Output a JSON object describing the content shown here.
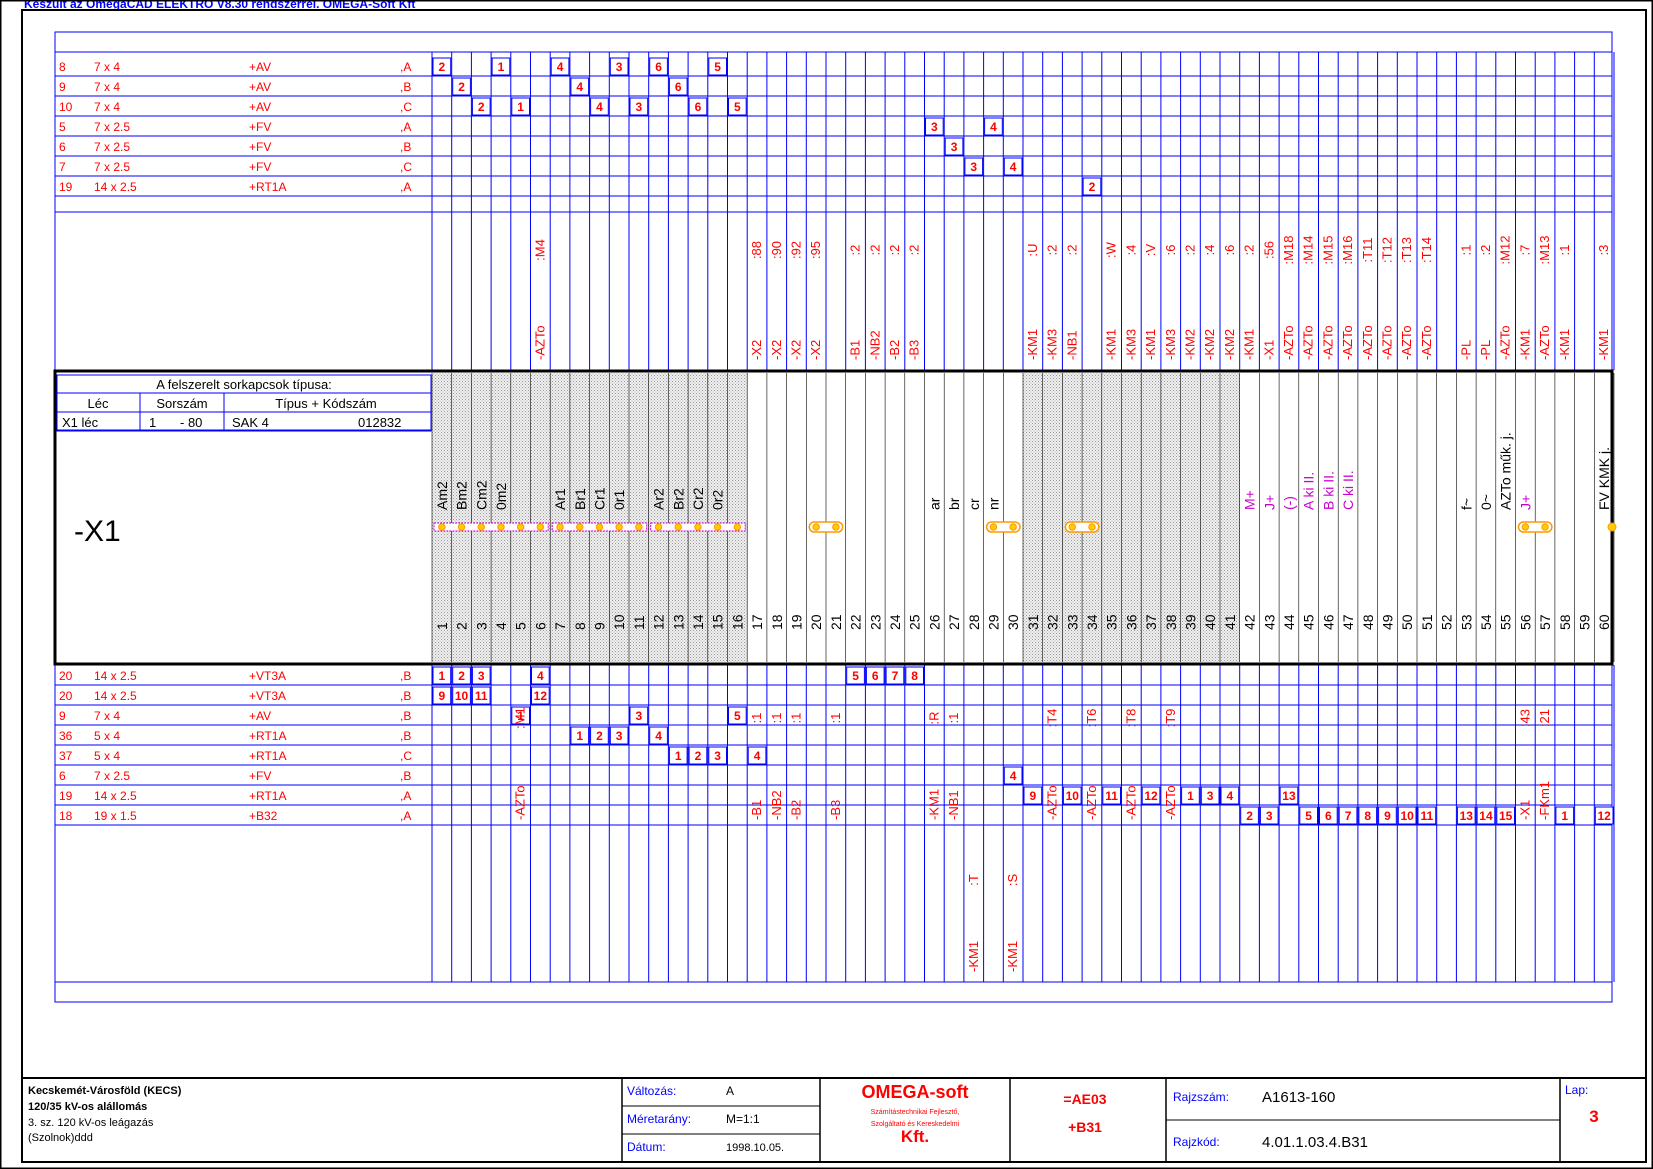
{
  "header_text": "Készült az OmegaCAD ELEKTRO V8.30 rendszerrel. OMEGA-Soft Kft",
  "colors": {
    "blue": "#0000ff",
    "red": "#ff0000",
    "magenta": "#cc00cc",
    "black": "#000000",
    "orange": "#ff9900",
    "yellow": "#ffcc00",
    "navy": "#000080"
  },
  "strip_name": "-X1",
  "terminal_info": {
    "title": "A felszerelt sorkapcsok típusa:",
    "headers": [
      "Léc",
      "Sorszám",
      "Típus + Kódszám"
    ],
    "row": {
      "lec": "X1 léc",
      "from": "1",
      "to": "- 80",
      "type": "SAK 4",
      "code": "012832"
    }
  },
  "terminal_numbers": [
    "1",
    "2",
    "3",
    "4",
    "5",
    "6",
    "7",
    "8",
    "9",
    "10",
    "11",
    "12",
    "13",
    "14",
    "15",
    "16",
    "17",
    "18",
    "19",
    "20",
    "21",
    "22",
    "23",
    "24",
    "25",
    "26",
    "27",
    "28",
    "29",
    "30",
    "31",
    "32",
    "33",
    "34",
    "35",
    "36",
    "37",
    "38",
    "39",
    "40",
    "41",
    "42",
    "43",
    "44",
    "45",
    "46",
    "47",
    "48",
    "49",
    "50",
    "51",
    "52",
    "53",
    "54",
    "55",
    "56",
    "57",
    "58",
    "59",
    "60"
  ],
  "terminal_labels": [
    {
      "t": 1,
      "text": "Am2",
      "color": "black"
    },
    {
      "t": 2,
      "text": "Bm2",
      "color": "black"
    },
    {
      "t": 3,
      "text": "Cm2",
      "color": "black"
    },
    {
      "t": 4,
      "text": "0m2",
      "color": "black"
    },
    {
      "t": 7,
      "text": "Ar1",
      "color": "black"
    },
    {
      "t": 8,
      "text": "Br1",
      "color": "black"
    },
    {
      "t": 9,
      "text": "Cr1",
      "color": "black"
    },
    {
      "t": 10,
      "text": "0r1",
      "color": "black"
    },
    {
      "t": 12,
      "text": "Ar2",
      "color": "black"
    },
    {
      "t": 13,
      "text": "Br2",
      "color": "black"
    },
    {
      "t": 14,
      "text": "Cr2",
      "color": "black"
    },
    {
      "t": 15,
      "text": "0r2",
      "color": "black"
    },
    {
      "t": 26,
      "text": "ar",
      "color": "black"
    },
    {
      "t": 27,
      "text": "br",
      "color": "black"
    },
    {
      "t": 28,
      "text": "cr",
      "color": "black"
    },
    {
      "t": 29,
      "text": "nr",
      "color": "black"
    },
    {
      "t": 42,
      "text": "M+",
      "color": "magenta"
    },
    {
      "t": 43,
      "text": "J+",
      "color": "magenta"
    },
    {
      "t": 44,
      "text": "(-)",
      "color": "magenta"
    },
    {
      "t": 45,
      "text": "A ki II.",
      "color": "magenta"
    },
    {
      "t": 46,
      "text": "B ki II.",
      "color": "magenta"
    },
    {
      "t": 47,
      "text": "C ki II.",
      "color": "magenta"
    },
    {
      "t": 53,
      "text": "f~",
      "color": "black"
    },
    {
      "t": 54,
      "text": "0~",
      "color": "black"
    },
    {
      "t": 55,
      "text": "AZTo műk. j.",
      "color": "black"
    },
    {
      "t": 56,
      "text": "J+",
      "color": "magenta"
    },
    {
      "t": 60,
      "text": "FV KMK j.",
      "color": "black"
    }
  ],
  "shaded_terminals": [
    1,
    2,
    3,
    4,
    5,
    6,
    7,
    8,
    9,
    10,
    11,
    12,
    13,
    14,
    15,
    16,
    31,
    32,
    33,
    34,
    35,
    36,
    37,
    38,
    39,
    40,
    41
  ],
  "jumper_groups": [
    [
      1,
      6
    ],
    [
      7,
      11
    ],
    [
      12,
      16
    ],
    [
      20,
      21
    ],
    [
      29,
      30
    ],
    [
      33,
      34
    ],
    [
      56,
      57
    ]
  ],
  "upper_cables": [
    {
      "no": "8",
      "size": "7 x 4",
      "loc": "+AV",
      "phase": ",A"
    },
    {
      "no": "9",
      "size": "7 x 4",
      "loc": "+AV",
      "phase": ",B"
    },
    {
      "no": "10",
      "size": "7 x 4",
      "loc": "+AV",
      "phase": ",C"
    },
    {
      "no": "5",
      "size": "7 x 2.5",
      "loc": "+FV",
      "phase": ",A"
    },
    {
      "no": "6",
      "size": "7 x 2.5",
      "loc": "+FV",
      "phase": ",B"
    },
    {
      "no": "7",
      "size": "7 x 2.5",
      "loc": "+FV",
      "phase": ",C"
    },
    {
      "no": "19",
      "size": "14 x 2.5",
      "loc": "+RT1A",
      "phase": ",A"
    }
  ],
  "lower_cables": [
    {
      "no": "20",
      "size": "14 x 2.5",
      "loc": "+VT3A",
      "phase": ",B"
    },
    {
      "no": "20",
      "size": "14 x 2.5",
      "loc": "+VT3A",
      "phase": ",B"
    },
    {
      "no": "9",
      "size": "7 x 4",
      "loc": "+AV",
      "phase": ",B"
    },
    {
      "no": "36",
      "size": "5 x 4",
      "loc": "+RT1A",
      "phase": ",B"
    },
    {
      "no": "37",
      "size": "5 x 4",
      "loc": "+RT1A",
      "phase": ",C"
    },
    {
      "no": "6",
      "size": "7 x 2.5",
      "loc": "+FV",
      "phase": ",B"
    },
    {
      "no": "19",
      "size": "14 x 2.5",
      "loc": "+RT1A",
      "phase": ",A"
    },
    {
      "no": "18",
      "size": "19 x 1.5",
      "loc": "+B32",
      "phase": ",A"
    }
  ],
  "upper_cores": [
    [
      0,
      1,
      "2"
    ],
    [
      0,
      4,
      "1"
    ],
    [
      0,
      7,
      "4"
    ],
    [
      0,
      10,
      "3"
    ],
    [
      0,
      12,
      "6"
    ],
    [
      0,
      15,
      "5"
    ],
    [
      1,
      2,
      "2"
    ],
    [
      1,
      8,
      "4"
    ],
    [
      1,
      13,
      "6"
    ],
    [
      2,
      3,
      "2"
    ],
    [
      2,
      5,
      "1"
    ],
    [
      2,
      9,
      "4"
    ],
    [
      2,
      11,
      "3"
    ],
    [
      2,
      14,
      "6"
    ],
    [
      2,
      16,
      "5"
    ],
    [
      3,
      26,
      "3"
    ],
    [
      3,
      29,
      "4"
    ],
    [
      4,
      27,
      "3"
    ],
    [
      5,
      28,
      "3"
    ],
    [
      5,
      30,
      "4"
    ],
    [
      6,
      34,
      "2"
    ]
  ],
  "lower_cores": [
    [
      0,
      1,
      "1"
    ],
    [
      0,
      2,
      "2"
    ],
    [
      0,
      3,
      "3"
    ],
    [
      0,
      6,
      "4"
    ],
    [
      0,
      22,
      "5"
    ],
    [
      0,
      23,
      "6"
    ],
    [
      0,
      24,
      "7"
    ],
    [
      0,
      25,
      "8"
    ],
    [
      1,
      1,
      "9"
    ],
    [
      1,
      2,
      "10"
    ],
    [
      1,
      3,
      "11"
    ],
    [
      1,
      6,
      "12"
    ],
    [
      2,
      5,
      "1"
    ],
    [
      2,
      11,
      "3"
    ],
    [
      2,
      16,
      "5"
    ],
    [
      3,
      8,
      "1"
    ],
    [
      3,
      9,
      "2"
    ],
    [
      3,
      10,
      "3"
    ],
    [
      3,
      12,
      "4"
    ],
    [
      4,
      13,
      "1"
    ],
    [
      4,
      14,
      "2"
    ],
    [
      4,
      15,
      "3"
    ],
    [
      4,
      17,
      "4"
    ],
    [
      5,
      30,
      "4"
    ],
    [
      6,
      31,
      "9"
    ],
    [
      6,
      33,
      "10"
    ],
    [
      6,
      35,
      "11"
    ],
    [
      6,
      37,
      "12"
    ],
    [
      6,
      39,
      "1"
    ],
    [
      6,
      40,
      "3"
    ],
    [
      6,
      41,
      "4"
    ],
    [
      6,
      44,
      "13"
    ],
    [
      7,
      42,
      "2"
    ],
    [
      7,
      43,
      "3"
    ],
    [
      7,
      45,
      "5"
    ],
    [
      7,
      46,
      "6"
    ],
    [
      7,
      47,
      "7"
    ],
    [
      7,
      48,
      "8"
    ],
    [
      7,
      49,
      "9"
    ],
    [
      7,
      50,
      "10"
    ],
    [
      7,
      51,
      "11"
    ],
    [
      7,
      53,
      "13"
    ],
    [
      7,
      54,
      "14"
    ],
    [
      7,
      55,
      "15"
    ],
    [
      7,
      58,
      "1"
    ],
    [
      7,
      60,
      "12"
    ]
  ],
  "upper_targets": [
    {
      "t": 6,
      "dev": "-AZTo",
      "pin": ":M4"
    },
    {
      "t": 17,
      "dev": "-X2",
      "pin": ":88"
    },
    {
      "t": 18,
      "dev": "-X2",
      "pin": ":90"
    },
    {
      "t": 19,
      "dev": "-X2",
      "pin": ":92"
    },
    {
      "t": 20,
      "dev": "-X2",
      "pin": ":95"
    },
    {
      "t": 22,
      "dev": "-B1",
      "pin": ":2"
    },
    {
      "t": 23,
      "dev": "-NB2",
      "pin": ":2"
    },
    {
      "t": 24,
      "dev": "-B2",
      "pin": ":2"
    },
    {
      "t": 25,
      "dev": "-B3",
      "pin": ":2"
    },
    {
      "t": 31,
      "dev": "-KM1",
      "pin": ":U"
    },
    {
      "t": 32,
      "dev": "-KM3",
      "pin": ":2"
    },
    {
      "t": 33,
      "dev": "-NB1",
      "pin": ":2"
    },
    {
      "t": 35,
      "dev": "-KM1",
      "pin": ":W"
    },
    {
      "t": 36,
      "dev": "-KM3",
      "pin": ":4"
    },
    {
      "t": 37,
      "dev": "-KM1",
      "pin": ":V"
    },
    {
      "t": 38,
      "dev": "-KM3",
      "pin": ":6"
    },
    {
      "t": 39,
      "dev": "-KM2",
      "pin": ":2"
    },
    {
      "t": 40,
      "dev": "-KM2",
      "pin": ":4"
    },
    {
      "t": 41,
      "dev": "-KM2",
      "pin": ":6"
    },
    {
      "t": 42,
      "dev": "-KM1",
      "pin": ":2"
    },
    {
      "t": 43,
      "dev": "-X1",
      "pin": ":56"
    },
    {
      "t": 44,
      "dev": "-AZTo",
      "pin": ":M18"
    },
    {
      "t": 45,
      "dev": "-AZTo",
      "pin": ":M14"
    },
    {
      "t": 46,
      "dev": "-AZTo",
      "pin": ":M15"
    },
    {
      "t": 47,
      "dev": "-AZTo",
      "pin": ":M16"
    },
    {
      "t": 48,
      "dev": "-AZTo",
      "pin": ":T11"
    },
    {
      "t": 49,
      "dev": "-AZTo",
      "pin": ":T12"
    },
    {
      "t": 50,
      "dev": "-AZTo",
      "pin": ":T13"
    },
    {
      "t": 51,
      "dev": "-AZTo",
      "pin": ":T14"
    },
    {
      "t": 53,
      "dev": "-PL",
      "pin": ":1"
    },
    {
      "t": 54,
      "dev": "-PL",
      "pin": ":2"
    },
    {
      "t": 55,
      "dev": "-AZTo",
      "pin": ":M12"
    },
    {
      "t": 56,
      "dev": "-KM1",
      "pin": ":7"
    },
    {
      "t": 57,
      "dev": "-AZTo",
      "pin": ":M13"
    },
    {
      "t": 58,
      "dev": "-KM1",
      "pin": ":1"
    },
    {
      "t": 60,
      "dev": "-KM1",
      "pin": ":3"
    }
  ],
  "lower_targets": [
    {
      "t": 5,
      "dev": "-AZTo",
      "pin": ":M1"
    },
    {
      "t": 17,
      "dev": "-B1",
      "pin": ":1"
    },
    {
      "t": 18,
      "dev": "-NB2",
      "pin": ":1"
    },
    {
      "t": 19,
      "dev": "-B2",
      "pin": ":1"
    },
    {
      "t": 21,
      "dev": "-B3",
      "pin": ":1"
    },
    {
      "t": 26,
      "dev": "-KM1",
      "pin": ":R"
    },
    {
      "t": 27,
      "dev": "-NB1",
      "pin": ":1"
    },
    {
      "t": 32,
      "dev": "-AZTo",
      "pin": ":T4"
    },
    {
      "t": 34,
      "dev": "-AZTo",
      "pin": ":T6"
    },
    {
      "t": 36,
      "dev": "-AZTo",
      "pin": ":T8"
    },
    {
      "t": 38,
      "dev": "-AZTo",
      "pin": ":T9"
    },
    {
      "t": 56,
      "dev": "-X1",
      "pin": ":43"
    },
    {
      "t": 57,
      "dev": "-FKm1",
      "pin": ":21"
    }
  ],
  "lower_far_targets": [
    {
      "t": 28,
      "dev": "-KM1",
      "pin": ":T"
    },
    {
      "t": 30,
      "dev": "-KM1",
      "pin": ":S"
    }
  ],
  "title_block": {
    "project_line1": "Kecskemét-Városföld (KECS)",
    "project_line2": "120/35 kV-os alállomás",
    "project_line3": "3. sz. 120 kV-os leágazás",
    "project_line4": "(Szolnok)ddd",
    "change_label": "Változás:",
    "change_value": "A",
    "scale_label": "Méretarány:",
    "scale_value": "M=1:1",
    "date_label": "Dátum:",
    "date_value": "1998.10.05.",
    "company_name": "OMEGA-soft",
    "company_line1": "Számítástechnikai Fejlesztő,",
    "company_line2": "Szolgáltató és Kereskedelmi",
    "company_kft": "Kft.",
    "function": "=AE03",
    "location": "+B31",
    "drawing_no_label": "Rajzszám:",
    "drawing_no": "A1613-160",
    "drawing_code_label": "Rajzkód:",
    "drawing_code": "4.01.1.03.4.B31",
    "sheet_label": "Lap:",
    "sheet_no": "3"
  }
}
